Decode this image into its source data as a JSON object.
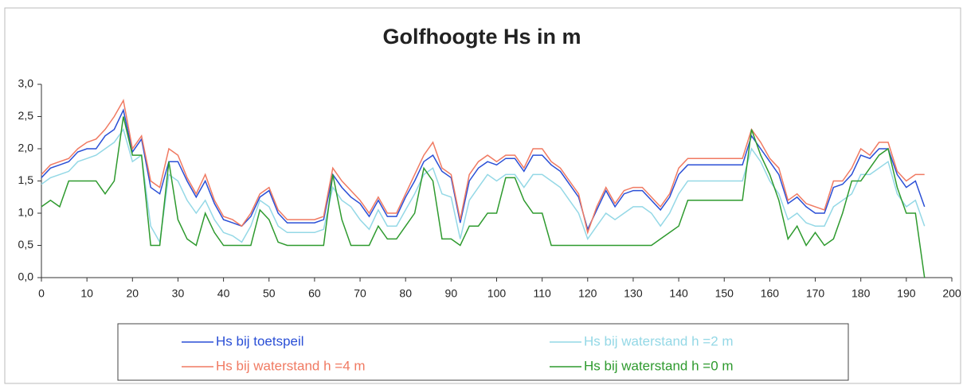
{
  "chart_data": {
    "type": "line",
    "title": "Golfhoogte Hs in m",
    "x": [
      0,
      2,
      4,
      6,
      8,
      10,
      12,
      14,
      16,
      18,
      20,
      22,
      24,
      26,
      28,
      30,
      32,
      34,
      36,
      38,
      40,
      42,
      44,
      46,
      48,
      50,
      52,
      54,
      56,
      58,
      60,
      62,
      64,
      66,
      68,
      70,
      72,
      74,
      76,
      78,
      80,
      82,
      84,
      86,
      88,
      90,
      92,
      94,
      96,
      98,
      100,
      102,
      104,
      106,
      108,
      110,
      112,
      114,
      116,
      118,
      120,
      122,
      124,
      126,
      128,
      130,
      132,
      134,
      136,
      138,
      140,
      142,
      144,
      146,
      148,
      150,
      152,
      154,
      156,
      158,
      160,
      162,
      164,
      166,
      168,
      170,
      172,
      174,
      176,
      178,
      180,
      182,
      184,
      186,
      188,
      190,
      192,
      194
    ],
    "series": [
      {
        "name": "Hs bij toetspeil",
        "color": "#2a4fd6",
        "values": [
          1.55,
          1.7,
          1.75,
          1.8,
          1.95,
          2.0,
          2.0,
          2.2,
          2.3,
          2.6,
          1.95,
          2.15,
          1.4,
          1.3,
          1.8,
          1.8,
          1.5,
          1.25,
          1.5,
          1.15,
          0.9,
          0.85,
          0.8,
          0.95,
          1.25,
          1.35,
          1.0,
          0.85,
          0.85,
          0.85,
          0.85,
          0.9,
          1.6,
          1.4,
          1.25,
          1.15,
          0.95,
          1.2,
          0.95,
          0.95,
          1.25,
          1.5,
          1.8,
          1.9,
          1.65,
          1.55,
          0.85,
          1.5,
          1.7,
          1.8,
          1.75,
          1.85,
          1.85,
          1.65,
          1.9,
          1.9,
          1.75,
          1.65,
          1.45,
          1.25,
          0.75,
          1.05,
          1.35,
          1.1,
          1.3,
          1.35,
          1.35,
          1.2,
          1.05,
          1.25,
          1.6,
          1.75,
          1.75,
          1.75,
          1.75,
          1.75,
          1.75,
          1.75,
          2.2,
          2.0,
          1.8,
          1.6,
          1.15,
          1.25,
          1.1,
          1.0,
          1.0,
          1.4,
          1.45,
          1.6,
          1.9,
          1.85,
          2.0,
          2.0,
          1.6,
          1.4,
          1.5,
          1.1
        ]
      },
      {
        "name": "Hs bij waterstand h =4 m",
        "color": "#f07a62",
        "values": [
          1.6,
          1.75,
          1.8,
          1.85,
          2.0,
          2.1,
          2.15,
          2.3,
          2.5,
          2.75,
          2.0,
          2.2,
          1.5,
          1.4,
          2.0,
          1.9,
          1.55,
          1.3,
          1.6,
          1.2,
          0.95,
          0.9,
          0.8,
          1.0,
          1.3,
          1.4,
          1.05,
          0.9,
          0.9,
          0.9,
          0.9,
          0.95,
          1.7,
          1.5,
          1.35,
          1.2,
          1.0,
          1.25,
          1.0,
          1.0,
          1.3,
          1.6,
          1.9,
          2.1,
          1.7,
          1.6,
          0.9,
          1.6,
          1.8,
          1.9,
          1.8,
          1.9,
          1.9,
          1.7,
          2.0,
          2.0,
          1.8,
          1.7,
          1.5,
          1.3,
          0.7,
          1.1,
          1.4,
          1.15,
          1.35,
          1.4,
          1.4,
          1.25,
          1.1,
          1.3,
          1.7,
          1.85,
          1.85,
          1.85,
          1.85,
          1.85,
          1.85,
          1.85,
          2.3,
          2.1,
          1.85,
          1.7,
          1.2,
          1.3,
          1.15,
          1.1,
          1.05,
          1.5,
          1.5,
          1.7,
          2.0,
          1.9,
          2.1,
          2.1,
          1.65,
          1.5,
          1.6,
          1.6
        ]
      },
      {
        "name": "Hs bij waterstand h =2 m",
        "color": "#94d8e6",
        "values": [
          1.45,
          1.55,
          1.6,
          1.65,
          1.8,
          1.85,
          1.9,
          2.0,
          2.1,
          2.3,
          1.8,
          1.9,
          0.8,
          0.55,
          1.6,
          1.5,
          1.2,
          1.0,
          1.2,
          0.9,
          0.7,
          0.65,
          0.55,
          0.8,
          1.2,
          1.1,
          0.8,
          0.7,
          0.7,
          0.7,
          0.7,
          0.75,
          1.4,
          1.2,
          1.1,
          0.9,
          0.75,
          1.05,
          0.8,
          0.8,
          1.05,
          1.3,
          1.6,
          1.7,
          1.3,
          1.25,
          0.6,
          1.2,
          1.4,
          1.6,
          1.5,
          1.6,
          1.6,
          1.4,
          1.6,
          1.6,
          1.5,
          1.4,
          1.2,
          1.0,
          0.6,
          0.8,
          1.0,
          0.9,
          1.0,
          1.1,
          1.1,
          1.0,
          0.8,
          1.0,
          1.3,
          1.5,
          1.5,
          1.5,
          1.5,
          1.5,
          1.5,
          1.5,
          2.0,
          1.8,
          1.5,
          1.3,
          0.9,
          1.0,
          0.85,
          0.8,
          0.8,
          1.1,
          1.2,
          1.3,
          1.6,
          1.6,
          1.7,
          1.8,
          1.3,
          1.1,
          1.2,
          0.8
        ]
      },
      {
        "name": "Hs bij waterstand h =0 m",
        "color": "#2e9a2e",
        "values": [
          1.1,
          1.2,
          1.1,
          1.5,
          1.5,
          1.5,
          1.5,
          1.3,
          1.5,
          2.5,
          1.9,
          1.9,
          0.5,
          0.5,
          1.8,
          0.9,
          0.6,
          0.5,
          1.0,
          0.7,
          0.5,
          0.5,
          0.5,
          0.5,
          1.05,
          0.9,
          0.55,
          0.5,
          0.5,
          0.5,
          0.5,
          0.5,
          1.6,
          0.9,
          0.5,
          0.5,
          0.5,
          0.8,
          0.6,
          0.6,
          0.8,
          1.0,
          1.7,
          1.5,
          0.6,
          0.6,
          0.5,
          0.8,
          0.8,
          1.0,
          1.0,
          1.55,
          1.55,
          1.2,
          1.0,
          1.0,
          0.5,
          0.5,
          0.5,
          0.5,
          0.5,
          0.5,
          0.5,
          0.5,
          0.5,
          0.5,
          0.5,
          0.5,
          0.6,
          0.7,
          0.8,
          1.2,
          1.2,
          1.2,
          1.2,
          1.2,
          1.2,
          1.2,
          2.3,
          1.9,
          1.6,
          1.2,
          0.6,
          0.8,
          0.5,
          0.7,
          0.5,
          0.6,
          1.0,
          1.5,
          1.5,
          1.7,
          1.9,
          2.0,
          1.4,
          1.0,
          1.0,
          0.0
        ]
      }
    ],
    "xlim": [
      0,
      200
    ],
    "xticks": [
      0,
      10,
      20,
      30,
      40,
      50,
      60,
      70,
      80,
      90,
      100,
      110,
      120,
      130,
      140,
      150,
      160,
      170,
      180,
      190,
      200
    ],
    "ylim": [
      0,
      3
    ],
    "yticks": [
      {
        "value": 0,
        "label": "0,0"
      },
      {
        "value": 0.5,
        "label": "0,5"
      },
      {
        "value": 1,
        "label": "1,0"
      },
      {
        "value": 1.5,
        "label": "1,5"
      },
      {
        "value": 2,
        "label": "2,0"
      },
      {
        "value": 2.5,
        "label": "2,5"
      },
      {
        "value": 3,
        "label": "3,0"
      }
    ],
    "grid": false,
    "legend": "bottom"
  }
}
